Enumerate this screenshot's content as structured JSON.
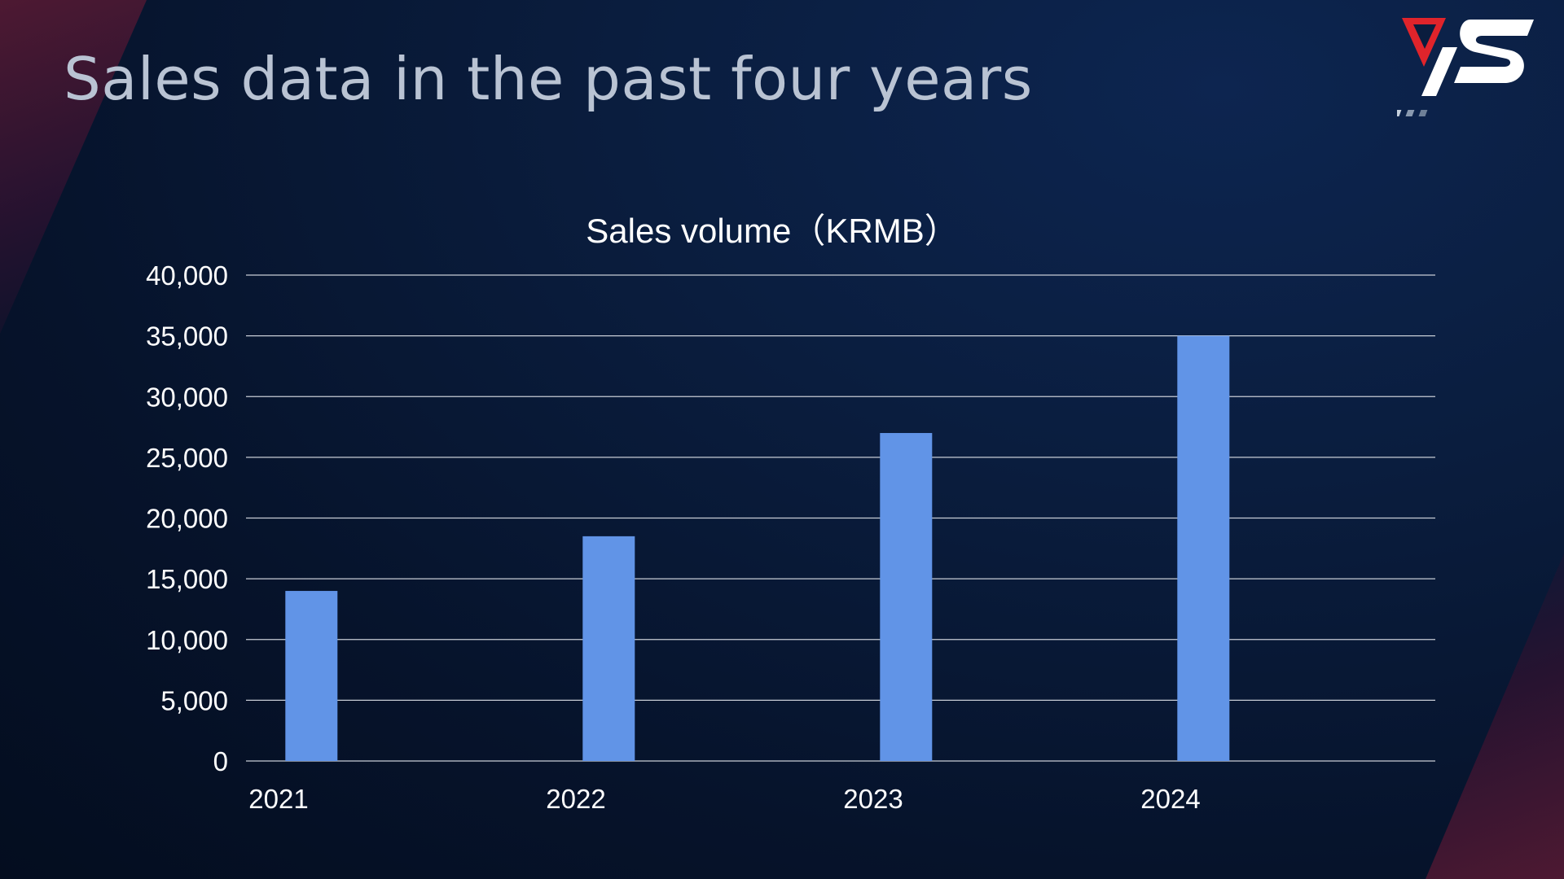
{
  "slide": {
    "title": "Sales data in the past four years"
  },
  "logo": {
    "text": "VS",
    "colors": {
      "red": "#e0242b",
      "white": "#ffffff",
      "stripes": "#8a9ab0"
    }
  },
  "colors": {
    "bar": "#6194e7",
    "grid": "#c8cdd6",
    "text": "#ffffff",
    "title": "#b9c3d3",
    "accent_decor": "#5a1a33"
  },
  "chart_data": {
    "type": "bar",
    "title": "Sales volume（KRMB）",
    "categories": [
      "2021",
      "2022",
      "2023",
      "2024"
    ],
    "series": [
      {
        "values": [
          14000,
          18500,
          27000,
          35000
        ]
      }
    ],
    "xlabel": "",
    "ylabel": "",
    "ylim": [
      0,
      40000
    ],
    "yticks": [
      0,
      5000,
      10000,
      15000,
      20000,
      25000,
      30000,
      35000,
      40000
    ],
    "grid": true,
    "legend": "none"
  }
}
